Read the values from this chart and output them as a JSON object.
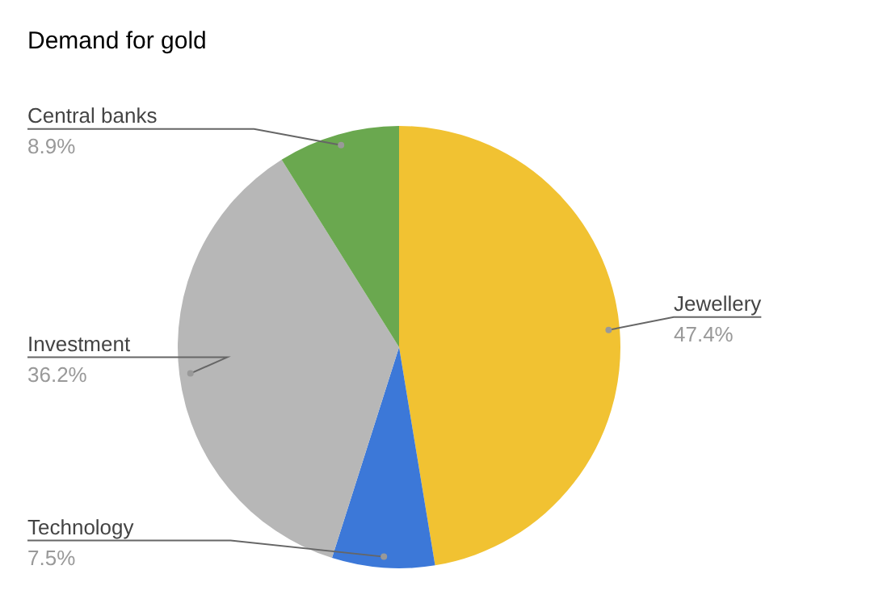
{
  "chart_data": {
    "type": "pie",
    "title": "Demand for gold",
    "categories": [
      "Jewellery",
      "Technology",
      "Investment",
      "Central banks"
    ],
    "values": [
      47.4,
      7.5,
      36.2,
      8.9
    ],
    "value_labels": [
      "47.4%",
      "7.5%",
      "36.2%",
      "8.9%"
    ],
    "colors": [
      "#f1c232",
      "#3c78d8",
      "#b7b7b7",
      "#6aa84f"
    ],
    "legend": false
  }
}
